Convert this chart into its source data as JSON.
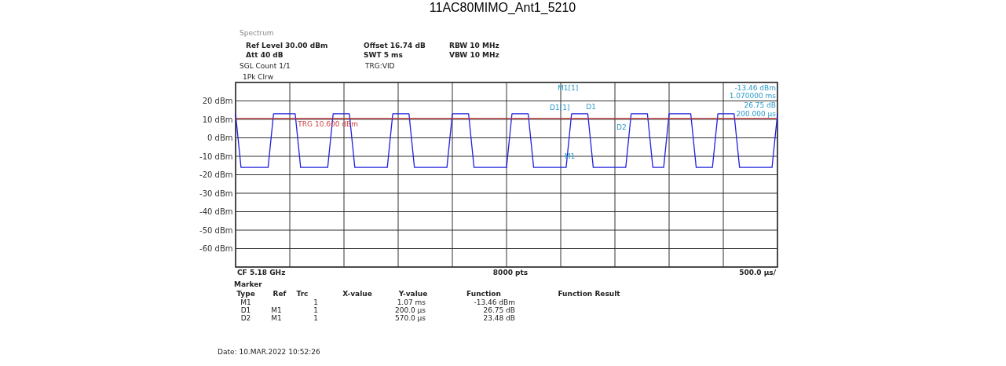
{
  "chart_data": {
    "type": "line",
    "title": "11AC80MIMO_Ant1_5210",
    "categories": [
      null,
      null,
      null,
      null,
      null,
      null,
      null,
      null,
      null,
      null,
      null,
      null,
      null,
      null,
      null,
      null,
      null,
      null,
      null,
      null,
      null,
      null,
      null,
      null,
      null,
      null,
      null,
      null,
      null,
      null,
      null,
      null,
      null,
      null,
      null,
      null,
      null,
      null,
      null,
      null,
      null,
      null,
      null,
      null,
      null,
      null,
      null,
      null,
      null,
      null,
      null,
      null,
      null,
      null,
      null,
      null,
      null,
      null,
      null,
      null,
      null,
      null,
      null,
      null,
      null,
      null,
      null,
      null,
      null,
      null,
      null,
      null,
      null,
      null,
      null,
      null,
      null,
      null,
      null,
      null,
      null,
      null,
      null,
      null,
      null,
      null,
      null,
      null,
      null,
      null,
      null,
      null,
      null,
      null,
      null,
      null,
      null,
      null,
      null,
      null,
      null
    ],
    "series": [
      {
        "color": "#2020e0",
        "values": [
          13,
          -16,
          -16,
          -16,
          -16,
          -16,
          -16,
          13,
          13,
          13,
          13,
          13,
          -16,
          -16,
          -16,
          -16,
          -16,
          -16,
          13,
          13,
          13,
          13,
          -16,
          -16,
          -16,
          -16,
          -16,
          -16,
          -16,
          13,
          13,
          13,
          13,
          -16,
          -16,
          -16,
          -16,
          -16,
          -16,
          -16,
          13,
          13,
          13,
          13,
          -16,
          -16,
          -16,
          -16,
          -16,
          -16,
          -16,
          13,
          13,
          13,
          13,
          -16,
          -16,
          -16,
          -16,
          -16,
          -16,
          -16,
          13,
          13,
          13,
          13,
          -16,
          -16,
          -16,
          -16,
          -16,
          -16,
          -16,
          13,
          13,
          13,
          13,
          -16,
          -16,
          -16,
          13,
          13,
          13,
          13,
          13,
          -16,
          -16,
          -16,
          -16,
          13,
          13,
          13,
          13,
          -16,
          -16,
          -16,
          -16,
          -16,
          -16,
          -16,
          13
        ]
      }
    ],
    "ylim": [
      -70,
      30
    ],
    "yticks": [
      {
        "value": 20,
        "label": "20 dBm"
      },
      {
        "value": 10,
        "label": "10 dBm"
      },
      {
        "value": 0,
        "label": "0 dBm"
      },
      {
        "value": -10,
        "label": "-10 dBm"
      },
      {
        "value": -20,
        "label": "-20 dBm"
      },
      {
        "value": -30,
        "label": "-30 dBm"
      },
      {
        "value": -40,
        "label": "-40 dBm"
      },
      {
        "value": -50,
        "label": "-50 dBm"
      },
      {
        "value": -60,
        "label": "-60 dBm"
      }
    ],
    "tick_labels": "y",
    "grid": true,
    "marker": "none",
    "line_style": "solid",
    "ref_lines": [
      {
        "axis": "y",
        "value": 10.6,
        "label": "TRG 10.600 dBm",
        "color": "#d04040",
        "line_style": "solid"
      }
    ],
    "annotations": [
      "Spectrum",
      "Ref Level 30.00 dBm",
      "Offset 16.74 dB",
      "RBW 10 MHz",
      "Att 40 dB",
      "SWT 5 ms",
      "VBW 10 MHz",
      "SGL Count 1/1",
      "TRG:VID",
      "1Pk Clrw",
      "M1[1]",
      "-13.46 dBm",
      "1.070000 ms",
      "D1[1]",
      "26.75 dB",
      "200.000 µs",
      "CF 5.18 GHz",
      "8000 pts",
      "500.0 µs/",
      "Marker",
      "Type",
      "Ref",
      "Trc",
      "X-value",
      "Y-value",
      "Function",
      "Function Result",
      "M1",
      "1",
      "1.07 ms",
      "-13.46 dBm",
      "D1",
      "M1",
      "1",
      "200.0 µs",
      "26.75 dB",
      "D2",
      "M1",
      "1",
      "570.0 µs",
      "23.48 dB",
      "Date: 10.MAR.2022 10:52:26",
      {
        "text": "M1",
        "y": -13.46
      },
      {
        "text": "D1",
        "y": 13.29
      },
      {
        "text": "D2",
        "y": 10.02
      }
    ]
  }
}
